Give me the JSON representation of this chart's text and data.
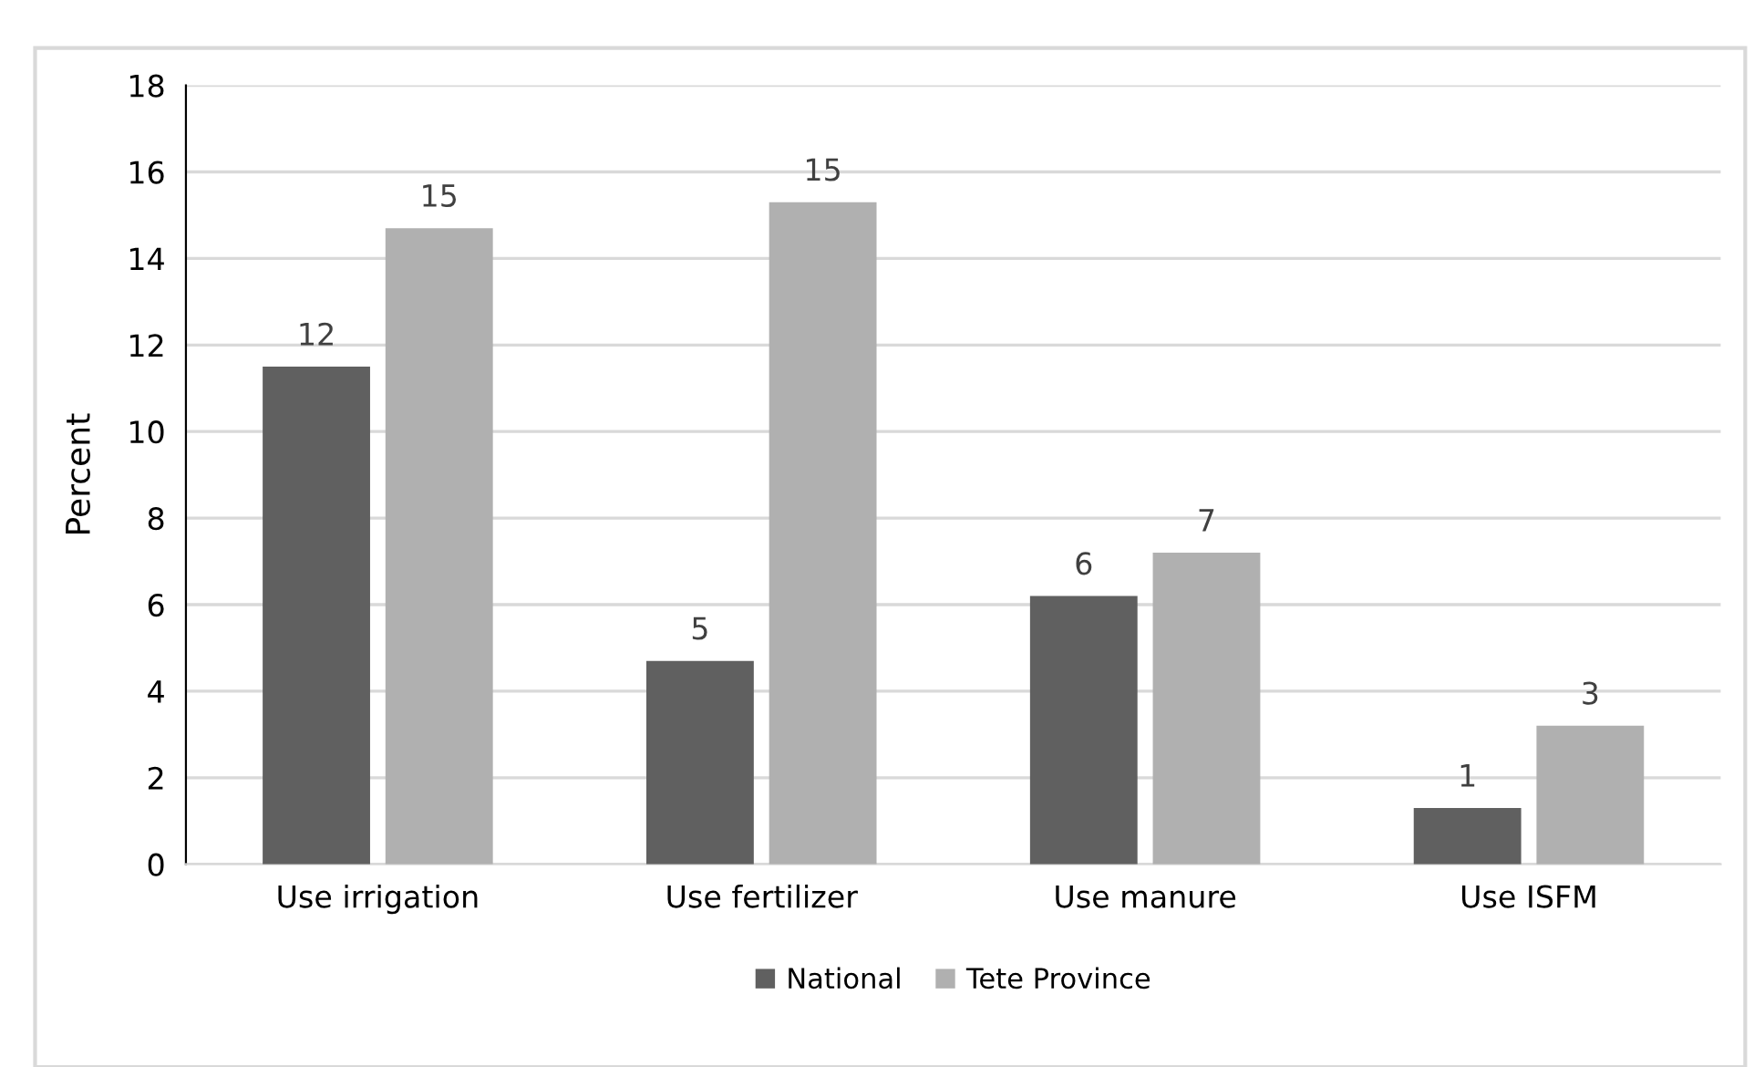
{
  "chart_data": {
    "type": "bar",
    "ylabel": "Percent",
    "categories": [
      "Use irrigation",
      "Use fertilizer",
      "Use manure",
      "Use ISFM"
    ],
    "series": [
      {
        "name": "National",
        "color": "#606060",
        "values": [
          11.5,
          4.7,
          6.2,
          1.3
        ],
        "value_labels": [
          "12",
          "5",
          "6",
          "1"
        ]
      },
      {
        "name": "Tete Province",
        "color": "#b0b0b0",
        "values": [
          14.7,
          15.3,
          7.2,
          3.2
        ],
        "value_labels": [
          "15",
          "15",
          "7",
          "3"
        ]
      }
    ],
    "ylim": [
      0,
      18
    ],
    "yticks": [
      0,
      2,
      4,
      6,
      8,
      10,
      12,
      14,
      16,
      18
    ],
    "grid": "y",
    "legend": "bottom"
  }
}
